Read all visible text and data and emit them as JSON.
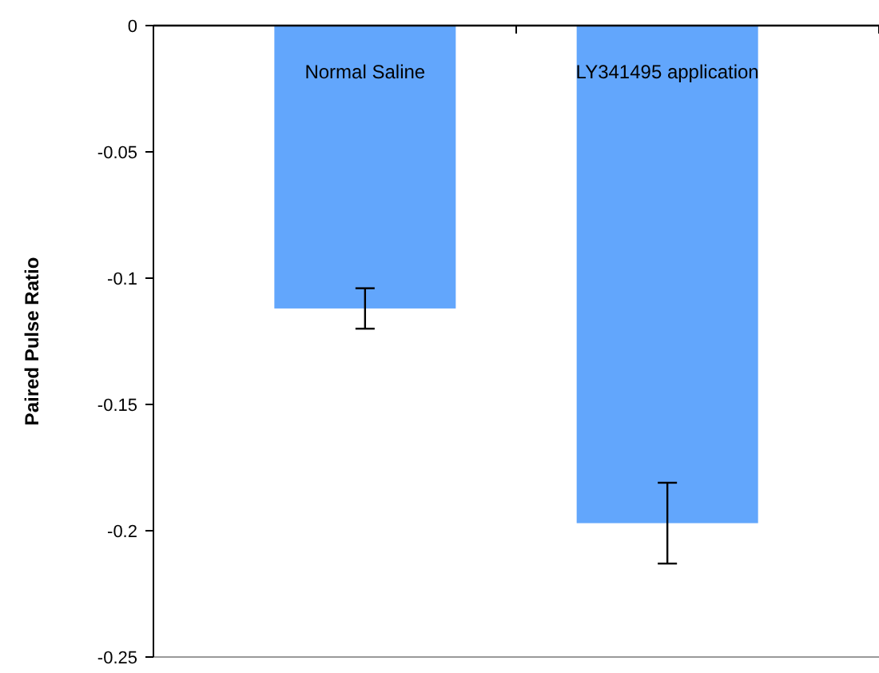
{
  "chart_data": {
    "type": "bar",
    "ylabel": "Paired Pulse Ratio",
    "categories": [
      "Normal Saline",
      "LY341495 application"
    ],
    "values": [
      -0.112,
      -0.197
    ],
    "errors": [
      0.008,
      0.016
    ],
    "color": "#62a6fc",
    "ylim": [
      -0.25,
      0
    ],
    "yticks": [
      0,
      -0.05,
      -0.1,
      -0.15,
      -0.2,
      -0.25
    ],
    "grid": false
  }
}
